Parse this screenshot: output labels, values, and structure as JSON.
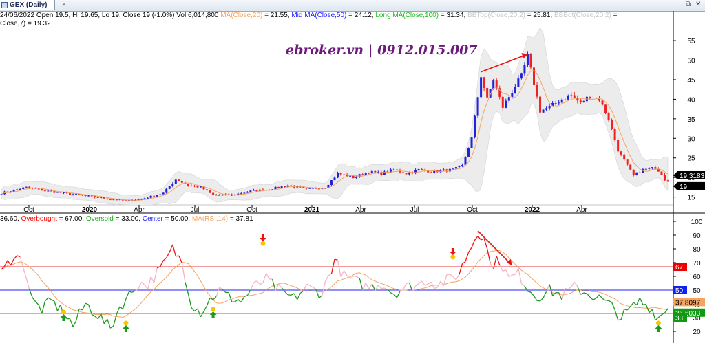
{
  "tab": {
    "title": "GEX (Daily)",
    "close": "×"
  },
  "window_controls": {
    "restore": "⧉",
    "close": "✕"
  },
  "price_header": [
    {
      "text": "24/06/2022 Open 19.5, Hi 19.65, Lo 19, Close 19 (-1.0%) Vol 6,014,800",
      "color": "#000000"
    },
    {
      "text": " MA(Close,20)",
      "color": "#f4a460"
    },
    {
      "text": " = 21.55,",
      "color": "#000000"
    },
    {
      "text": " Mid MA(Close,50)",
      "color": "#2020ff"
    },
    {
      "text": " = 24.12,",
      "color": "#000000"
    },
    {
      "text": " Long MA(Close,100)",
      "color": "#22bb22"
    },
    {
      "text": " = 31.34,",
      "color": "#000000"
    },
    {
      "text": " BBTop(Close,20,2)",
      "color": "#c8c8c8"
    },
    {
      "text": " = 25.81,",
      "color": "#000000"
    },
    {
      "text": " BBBot(Close,20,2)",
      "color": "#c8c8c8"
    },
    {
      "text": " =",
      "color": "#000000"
    }
  ],
  "price_header_line2": "Close,7) = 19.32",
  "rsi_header": [
    {
      "text": "36.60,",
      "color": "#000000"
    },
    {
      "text": " Overbought",
      "color": "#ff0000"
    },
    {
      "text": " = 67.00,",
      "color": "#000000"
    },
    {
      "text": " Oversold",
      "color": "#22aa22"
    },
    {
      "text": " = 33.00,",
      "color": "#000000"
    },
    {
      "text": " Center",
      "color": "#2020ff"
    },
    {
      "text": " = 50.00,",
      "color": "#000000"
    },
    {
      "text": " MA(RSI,14)",
      "color": "#f4a460"
    },
    {
      "text": " = 37.81",
      "color": "#000000"
    }
  ],
  "watermark": "ebroker.vn | 0912.015.007",
  "colors": {
    "up": "#2222dd",
    "down": "#ee2222",
    "ma20": "#f4a460",
    "bb_fill": "#ececec",
    "rsi_green": "#1c9a1c",
    "rsi_red": "#ee1111",
    "rsi_pink": "#f3b5c8",
    "overbought": "#ee3333",
    "oversold": "#22aa22",
    "center": "#2222ee",
    "arrow": "#ee1111",
    "marker": "#f7c600",
    "axis_text": "#000000"
  },
  "chart_data": [
    {
      "type": "candlestick",
      "series": [
        {
          "name": "MA(Close,20)"
        },
        {
          "name": "BBTop(Close,20,2)"
        },
        {
          "name": "BBBot(Close,20,2)"
        }
      ],
      "x_ticks": [
        "Oct",
        "2020",
        "Apr",
        "Jul",
        "Oct",
        "2021",
        "Apr",
        "Jul",
        "Oct",
        "2022",
        "Apr"
      ],
      "x_tick_bold": [
        false,
        true,
        false,
        false,
        false,
        true,
        false,
        false,
        false,
        true,
        false
      ],
      "y_ticks": [
        15,
        20,
        25,
        30,
        35,
        40,
        45,
        50,
        55
      ],
      "ylim": [
        13,
        58
      ],
      "trend_path": [
        [
          0,
          16
        ],
        [
          8,
          17.5
        ],
        [
          15,
          16.5
        ],
        [
          25,
          15.5
        ],
        [
          35,
          14.5
        ],
        [
          40,
          14
        ],
        [
          45,
          14.5
        ],
        [
          52,
          16
        ],
        [
          56,
          19.5
        ],
        [
          60,
          18
        ],
        [
          64,
          17.5
        ],
        [
          68,
          15.5
        ],
        [
          74,
          15.5
        ],
        [
          80,
          16.5
        ],
        [
          86,
          17
        ],
        [
          92,
          18
        ],
        [
          98,
          17
        ],
        [
          104,
          17.5
        ],
        [
          108,
          21
        ],
        [
          113,
          20
        ],
        [
          118,
          21.5
        ],
        [
          122,
          21
        ],
        [
          126,
          22
        ],
        [
          130,
          21
        ],
        [
          134,
          22
        ],
        [
          138,
          21.5
        ],
        [
          145,
          22
        ],
        [
          148,
          23
        ],
        [
          151,
          30
        ],
        [
          154,
          46
        ],
        [
          156,
          40
        ],
        [
          158,
          45
        ],
        [
          161,
          38
        ],
        [
          164,
          42
        ],
        [
          167,
          46
        ],
        [
          169,
          51
        ],
        [
          171,
          44
        ],
        [
          173,
          37
        ],
        [
          176,
          38
        ],
        [
          180,
          40
        ],
        [
          183,
          41
        ],
        [
          186,
          39
        ],
        [
          189,
          41
        ],
        [
          192,
          40
        ],
        [
          195,
          35
        ],
        [
          198,
          27
        ],
        [
          201,
          23
        ],
        [
          203,
          20.5
        ],
        [
          206,
          22
        ],
        [
          210,
          22.5
        ],
        [
          212,
          21
        ],
        [
          214,
          18
        ]
      ],
      "trend_len": 215,
      "ohlc_last": {
        "date": "24/06/2022",
        "open": 19.5,
        "high": 19.65,
        "low": 19,
        "close": 19
      },
      "price_labels": [
        {
          "value": 19.3183,
          "text": "19.3183",
          "bg": "#000000",
          "fg": "#ffffff"
        },
        {
          "value": 19,
          "text": "19",
          "bg": "#000000",
          "fg": "#ffffff"
        }
      ],
      "annotation": {
        "type": "arrow",
        "from": [
          154,
          47
        ],
        "to": [
          169,
          51.5
        ]
      }
    },
    {
      "type": "line",
      "series": [
        {
          "name": "RSI"
        },
        {
          "name": "MA(RSI,14)"
        }
      ],
      "levels": {
        "overbought": 67,
        "oversold": 33,
        "center": 50
      },
      "y_ticks": [
        20,
        30,
        40,
        50,
        60,
        70,
        80,
        90,
        100
      ],
      "ylim": [
        15,
        102
      ],
      "trend_path": [
        [
          0,
          62
        ],
        [
          4,
          76
        ],
        [
          7,
          70
        ],
        [
          10,
          42
        ],
        [
          13,
          36
        ],
        [
          16,
          42
        ],
        [
          20,
          34
        ],
        [
          23,
          24
        ],
        [
          27,
          40
        ],
        [
          31,
          32
        ],
        [
          35,
          22
        ],
        [
          38,
          38
        ],
        [
          41,
          46
        ],
        [
          44,
          55
        ],
        [
          47,
          54
        ],
        [
          52,
          68
        ],
        [
          55,
          80
        ],
        [
          58,
          70
        ],
        [
          61,
          41
        ],
        [
          64,
          34
        ],
        [
          67,
          43
        ],
        [
          70,
          50
        ],
        [
          73,
          45
        ],
        [
          77,
          42
        ],
        [
          81,
          52
        ],
        [
          85,
          58
        ],
        [
          90,
          48
        ],
        [
          94,
          44
        ],
        [
          98,
          52
        ],
        [
          103,
          48
        ],
        [
          107,
          72
        ],
        [
          110,
          60
        ],
        [
          114,
          56
        ],
        [
          118,
          52
        ],
        [
          122,
          55
        ],
        [
          126,
          48
        ],
        [
          130,
          52
        ],
        [
          134,
          54
        ],
        [
          137,
          58
        ],
        [
          140,
          54
        ],
        [
          144,
          58
        ],
        [
          147,
          62
        ],
        [
          150,
          78
        ],
        [
          153,
          92
        ],
        [
          155,
          90
        ],
        [
          157,
          68
        ],
        [
          160,
          72
        ],
        [
          163,
          58
        ],
        [
          166,
          62
        ],
        [
          169,
          52
        ],
        [
          172,
          45
        ],
        [
          176,
          50
        ],
        [
          180,
          46
        ],
        [
          184,
          52
        ],
        [
          188,
          48
        ],
        [
          192,
          44
        ],
        [
          196,
          38
        ],
        [
          199,
          30
        ],
        [
          202,
          36
        ],
        [
          205,
          42
        ],
        [
          208,
          38
        ],
        [
          211,
          30
        ],
        [
          214,
          36.6
        ]
      ],
      "ma_last": 37.8097,
      "rsi_last": 36.6033,
      "value_labels": [
        {
          "value": 67,
          "text": "67",
          "bg": "#ee0000",
          "fg": "#ffffff"
        },
        {
          "value": 50,
          "text": "50",
          "bg": "#1122ee",
          "fg": "#ffffff"
        },
        {
          "value": 37.8097,
          "text": "37.8097",
          "bg": "#f4a460",
          "fg": "#000000"
        },
        {
          "value": 36.6033,
          "text": "36.6033",
          "bg": "#119911",
          "fg": "#ffffff"
        },
        {
          "value": 33,
          "text": "33",
          "bg": "#119911",
          "fg": "#ffffff"
        }
      ],
      "annotation": {
        "type": "arrow",
        "from": [
          153,
          93
        ],
        "to": [
          164,
          68
        ]
      },
      "signals": [
        {
          "x": 20,
          "value": 34,
          "kind": "buy"
        },
        {
          "x": 40,
          "value": 26,
          "kind": "buy"
        },
        {
          "x": 68,
          "value": 36,
          "kind": "buy"
        },
        {
          "x": 84,
          "value": 84,
          "kind": "sell"
        },
        {
          "x": 145,
          "value": 74,
          "kind": "sell"
        },
        {
          "x": 211,
          "value": 26,
          "kind": "buy"
        }
      ]
    }
  ]
}
